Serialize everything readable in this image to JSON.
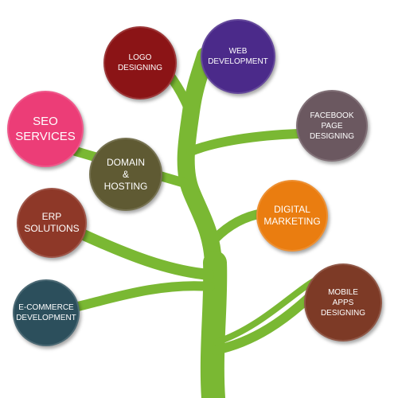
{
  "colors": {
    "branch": "#7ab833",
    "branch_dark": "#5c9a22"
  },
  "nodes": [
    {
      "id": "logo-designing",
      "label": "LOGO\nDESIGNING",
      "color": "#8b1416"
    },
    {
      "id": "web-development",
      "label": "WEB\nDEVELOPMENT",
      "color": "#4b2a8a"
    },
    {
      "id": "seo-services",
      "label": "SEO\nSERVICES",
      "color": "#ec3d77"
    },
    {
      "id": "facebook-page",
      "label": "FACEBOOK\nPAGE\nDESIGNING",
      "color": "#6b5860"
    },
    {
      "id": "domain-hosting",
      "label": "DOMAIN\n&\nHOSTING",
      "color": "#5f5a33"
    },
    {
      "id": "erp-solutions",
      "label": "ERP\nSOLUTIONS",
      "color": "#8e3828"
    },
    {
      "id": "digital-marketing",
      "label": "DIGITAL\nMARKETING",
      "color": "#ea7d10"
    },
    {
      "id": "ecommerce-dev",
      "label": "E-COMMERCE\nDEVELOPMENT",
      "color": "#2c4f5c"
    },
    {
      "id": "mobile-apps",
      "label": "MOBILE\nAPPS\nDESIGNING",
      "color": "#7d3a26"
    }
  ]
}
